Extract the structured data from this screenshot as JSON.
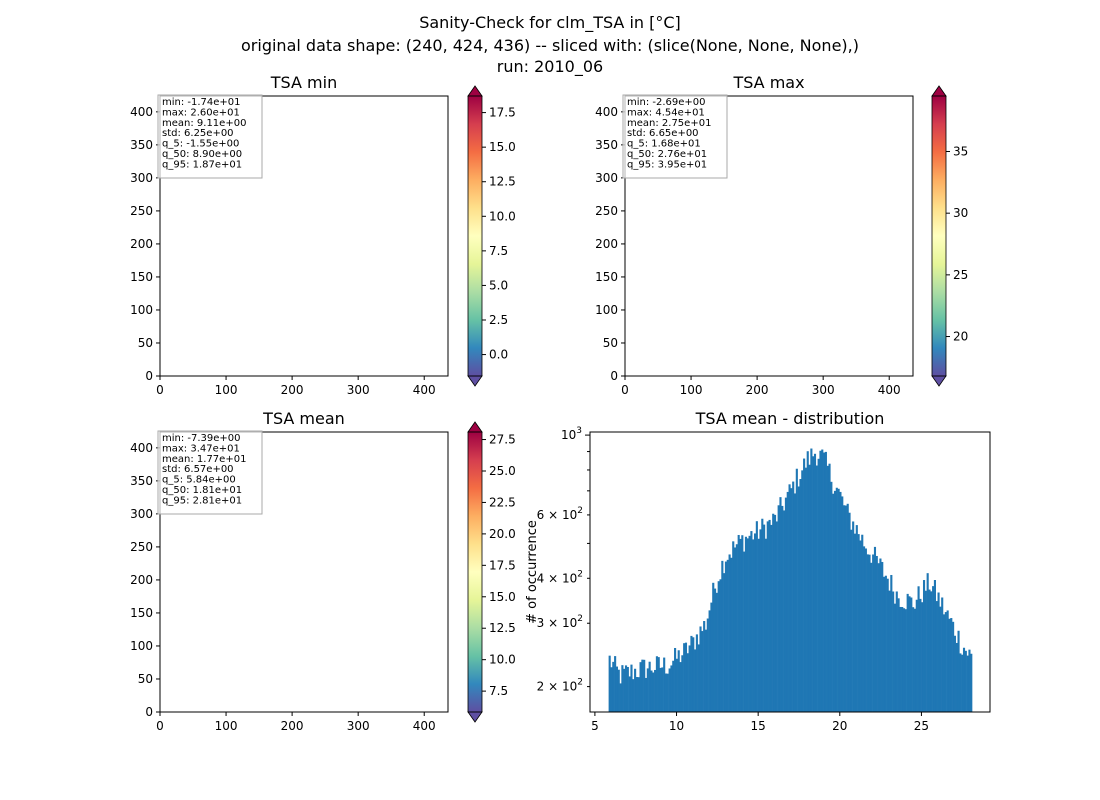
{
  "figure": {
    "title_lines": [
      "Sanity-Check for clm_TSA in [°C]",
      "original data shape: (240, 424, 436) -- sliced with: (slice(None, None, None),)",
      "run: 2010_06"
    ]
  },
  "chart_data": [
    {
      "type": "heatmap",
      "title": "TSA min",
      "xlabel": "",
      "ylabel": "",
      "xlim": [
        0,
        436
      ],
      "ylim": [
        0,
        424
      ],
      "xticks": [
        "0",
        "100",
        "200",
        "300",
        "400"
      ],
      "yticks": [
        "0",
        "50",
        "100",
        "150",
        "200",
        "250",
        "300",
        "350",
        "400"
      ],
      "colormap": "Spectral_r",
      "colorbar": {
        "ticks": [
          "0.0",
          "2.5",
          "5.0",
          "7.5",
          "10.0",
          "12.5",
          "15.0",
          "17.5"
        ],
        "vmin": -1.55,
        "vmax": 18.7,
        "extend": "both"
      },
      "stats": [
        "min: -1.74e+01",
        "max: 2.60e+01",
        "mean: 9.11e+00",
        "std: 6.25e+00",
        "q_5: -1.55e+00",
        "q_50: 8.90e+00",
        "q_95: 1.87e+01"
      ]
    },
    {
      "type": "heatmap",
      "title": "TSA max",
      "xlabel": "",
      "ylabel": "",
      "xlim": [
        0,
        436
      ],
      "ylim": [
        0,
        424
      ],
      "xticks": [
        "0",
        "100",
        "200",
        "300",
        "400"
      ],
      "yticks": [
        "0",
        "50",
        "100",
        "150",
        "200",
        "250",
        "300",
        "350",
        "400"
      ],
      "colormap": "Spectral_r",
      "colorbar": {
        "ticks": [
          "20",
          "25",
          "30",
          "35"
        ],
        "vmin": 16.8,
        "vmax": 39.5,
        "extend": "both"
      },
      "stats": [
        "min: -2.69e+00",
        "max: 4.54e+01",
        "mean: 2.75e+01",
        "std: 6.65e+00",
        "q_5: 1.68e+01",
        "q_50: 2.76e+01",
        "q_95: 3.95e+01"
      ]
    },
    {
      "type": "heatmap",
      "title": "TSA mean",
      "xlabel": "",
      "ylabel": "",
      "xlim": [
        0,
        436
      ],
      "ylim": [
        0,
        424
      ],
      "xticks": [
        "0",
        "100",
        "200",
        "300",
        "400"
      ],
      "yticks": [
        "0",
        "50",
        "100",
        "150",
        "200",
        "250",
        "300",
        "350",
        "400"
      ],
      "colormap": "Spectral_r",
      "colorbar": {
        "ticks": [
          "7.5",
          "10.0",
          "12.5",
          "15.0",
          "17.5",
          "20.0",
          "22.5",
          "25.0",
          "27.5"
        ],
        "vmin": 5.84,
        "vmax": 28.1,
        "extend": "both"
      },
      "stats": [
        "min: -7.39e+00",
        "max: 3.47e+01",
        "mean: 1.77e+01",
        "std: 6.57e+00",
        "q_5: 5.84e+00",
        "q_50: 1.81e+01",
        "q_95: 2.81e+01"
      ]
    },
    {
      "type": "bar",
      "title": "TSA mean - distribution",
      "xlabel": "",
      "ylabel": "# of occurrence",
      "xlim": [
        4.7,
        29.2
      ],
      "ylim": [
        170,
        1020
      ],
      "yscale": "log",
      "xticks": [
        5,
        10,
        15,
        20,
        25
      ],
      "ymajor": [
        {
          "value": 1000,
          "base": "10",
          "exp": "3"
        }
      ],
      "yminor": [
        {
          "value": 200,
          "coef": "2",
          "base": "10",
          "exp": "2"
        },
        {
          "value": 300,
          "coef": "3",
          "base": "10",
          "exp": "2"
        },
        {
          "value": 400,
          "coef": "4",
          "base": "10",
          "exp": "2"
        },
        {
          "value": 600,
          "coef": "6",
          "base": "10",
          "exp": "2"
        }
      ],
      "color": "#1f77b4",
      "bin_start": 5.84,
      "bin_end": 28.1,
      "anchors": [
        [
          5.84,
          240
        ],
        [
          6.5,
          215
        ],
        [
          8.0,
          225
        ],
        [
          9.5,
          230
        ],
        [
          10.5,
          250
        ],
        [
          11.0,
          265
        ],
        [
          11.8,
          300
        ],
        [
          12.5,
          400
        ],
        [
          13.0,
          460
        ],
        [
          14.0,
          510
        ],
        [
          15.0,
          540
        ],
        [
          16.0,
          580
        ],
        [
          17.0,
          700
        ],
        [
          18.0,
          850
        ],
        [
          18.5,
          900
        ],
        [
          19.0,
          860
        ],
        [
          19.5,
          760
        ],
        [
          20.5,
          600
        ],
        [
          21.5,
          500
        ],
        [
          22.5,
          430
        ],
        [
          23.5,
          360
        ],
        [
          24.5,
          340
        ],
        [
          25.5,
          390
        ],
        [
          26.5,
          320
        ],
        [
          27.5,
          260
        ],
        [
          28.1,
          240
        ]
      ]
    }
  ]
}
